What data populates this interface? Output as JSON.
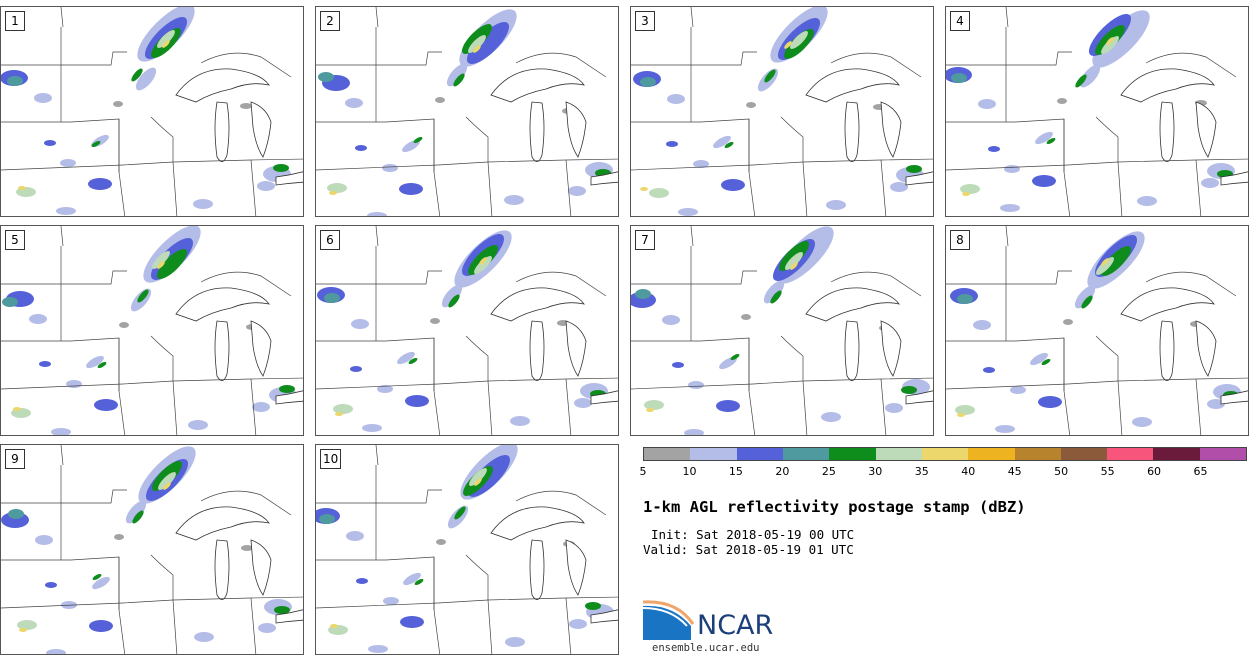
{
  "panels": [
    {
      "label": "1"
    },
    {
      "label": "2"
    },
    {
      "label": "3"
    },
    {
      "label": "4"
    },
    {
      "label": "5"
    },
    {
      "label": "6"
    },
    {
      "label": "7"
    },
    {
      "label": "8"
    },
    {
      "label": "9"
    },
    {
      "label": "10"
    }
  ],
  "colorbar": {
    "colors": [
      "#a3a3a3",
      "#b4bde8",
      "#5561d8",
      "#4e9a9e",
      "#0f8d1c",
      "#bedbb9",
      "#ebd76b",
      "#edb321",
      "#b8832d",
      "#8a5a3b",
      "#f7557c",
      "#6a1a3a",
      "#b04ea9"
    ],
    "ticks": [
      "5",
      "10",
      "15",
      "20",
      "25",
      "30",
      "35",
      "40",
      "45",
      "50",
      "55",
      "60",
      "65"
    ]
  },
  "title": "1-km AGL reflectivity postage stamp (dBZ)",
  "init": "Init: Sat 2018-05-19 00 UTC",
  "valid": "Valid: Sat 2018-05-19 01 UTC",
  "logo_text": "NCAR",
  "site": "ensemble.ucar.edu"
}
